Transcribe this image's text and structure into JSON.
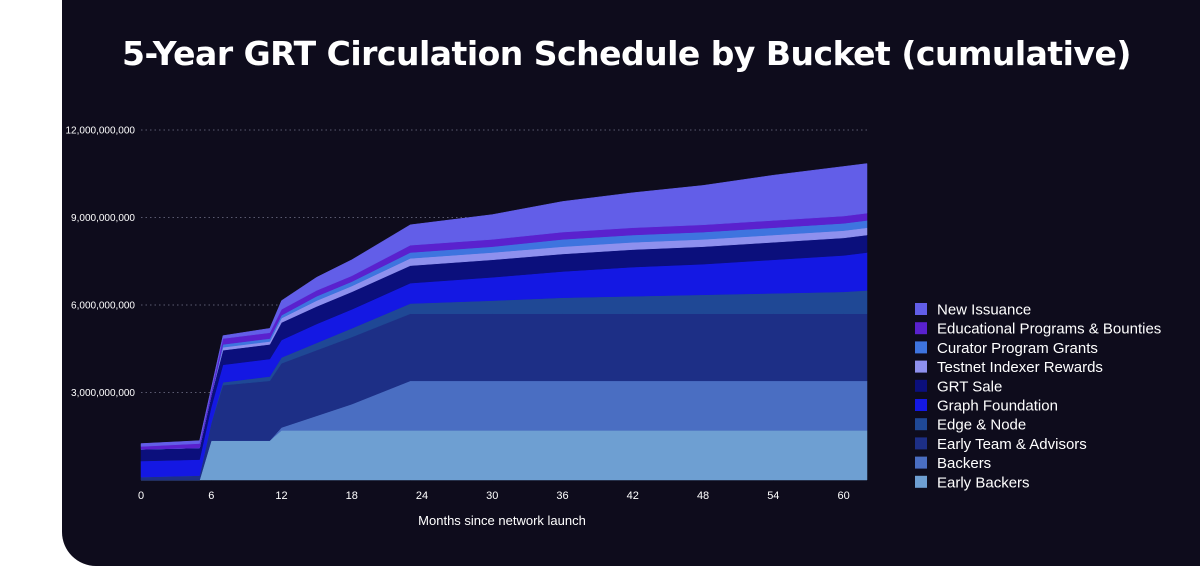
{
  "chart_data": {
    "type": "area",
    "stacked": true,
    "title": "5-Year GRT Circulation Schedule by Bucket (cumulative)",
    "xlabel": "Months since network launch",
    "ylabel": "",
    "xlim": [
      0,
      62
    ],
    "ylim": [
      0,
      12000000000
    ],
    "xticks": [
      "0",
      "6",
      "12",
      "18",
      "24",
      "30",
      "36",
      "42",
      "48",
      "54",
      "60"
    ],
    "yticks": [
      "3,000,000,000",
      "6,000,000,000",
      "9,000,000,000",
      "12,000,000,000"
    ],
    "grid": "horizontal dotted",
    "legend_position": "right",
    "x": [
      0,
      5,
      6,
      7,
      11,
      12,
      15,
      18,
      23,
      30,
      36,
      42,
      48,
      54,
      60,
      62
    ],
    "series": [
      {
        "name": "Early Backers",
        "color": "#6e9fd2",
        "values": [
          0,
          0,
          1350000000,
          1350000000,
          1350000000,
          1700000000,
          1700000000,
          1700000000,
          1700000000,
          1700000000,
          1700000000,
          1700000000,
          1700000000,
          1700000000,
          1700000000,
          1700000000
        ]
      },
      {
        "name": "Backers",
        "color": "#4a6ec2",
        "values": [
          0,
          0,
          0,
          0,
          0,
          100000000,
          500000000,
          900000000,
          1700000000,
          1700000000,
          1700000000,
          1700000000,
          1700000000,
          1700000000,
          1700000000,
          1700000000
        ]
      },
      {
        "name": "Early Team & Advisors",
        "color": "#1d2f86",
        "values": [
          100000000,
          150000000,
          600000000,
          1900000000,
          2050000000,
          2200000000,
          2250000000,
          2300000000,
          2300000000,
          2300000000,
          2300000000,
          2300000000,
          2300000000,
          2300000000,
          2300000000,
          2300000000
        ]
      },
      {
        "name": "Edge & Node",
        "color": "#1f4895",
        "values": [
          0,
          0,
          0,
          100000000,
          150000000,
          200000000,
          250000000,
          300000000,
          350000000,
          450000000,
          550000000,
          600000000,
          650000000,
          700000000,
          750000000,
          800000000
        ]
      },
      {
        "name": "Graph Foundation",
        "color": "#1418e3",
        "values": [
          550000000,
          550000000,
          550000000,
          600000000,
          600000000,
          600000000,
          650000000,
          650000000,
          700000000,
          800000000,
          900000000,
          1000000000,
          1050000000,
          1150000000,
          1250000000,
          1300000000
        ]
      },
      {
        "name": "GRT Sale",
        "color": "#0b0f7c",
        "values": [
          400000000,
          400000000,
          400000000,
          500000000,
          500000000,
          600000000,
          600000000,
          600000000,
          600000000,
          600000000,
          600000000,
          600000000,
          600000000,
          600000000,
          600000000,
          600000000
        ]
      },
      {
        "name": "Testnet Indexer Rewards",
        "color": "#8e90ee",
        "values": [
          0,
          0,
          0,
          100000000,
          100000000,
          150000000,
          200000000,
          200000000,
          250000000,
          250000000,
          250000000,
          250000000,
          250000000,
          250000000,
          250000000,
          250000000
        ]
      },
      {
        "name": "Curator Program Grants",
        "color": "#3e74df",
        "values": [
          0,
          0,
          0,
          100000000,
          100000000,
          100000000,
          150000000,
          150000000,
          200000000,
          200000000,
          250000000,
          250000000,
          250000000,
          250000000,
          250000000,
          250000000
        ]
      },
      {
        "name": "Educational Programs & Bounties",
        "color": "#5a21ce",
        "values": [
          100000000,
          150000000,
          150000000,
          200000000,
          200000000,
          200000000,
          200000000,
          200000000,
          250000000,
          250000000,
          250000000,
          250000000,
          250000000,
          250000000,
          250000000,
          250000000
        ]
      },
      {
        "name": "New Issuance",
        "color": "#625ee8",
        "values": [
          100000000,
          100000000,
          100000000,
          100000000,
          150000000,
          300000000,
          450000000,
          550000000,
          700000000,
          850000000,
          1050000000,
          1200000000,
          1350000000,
          1550000000,
          1700000000,
          1700000000
        ]
      }
    ]
  }
}
